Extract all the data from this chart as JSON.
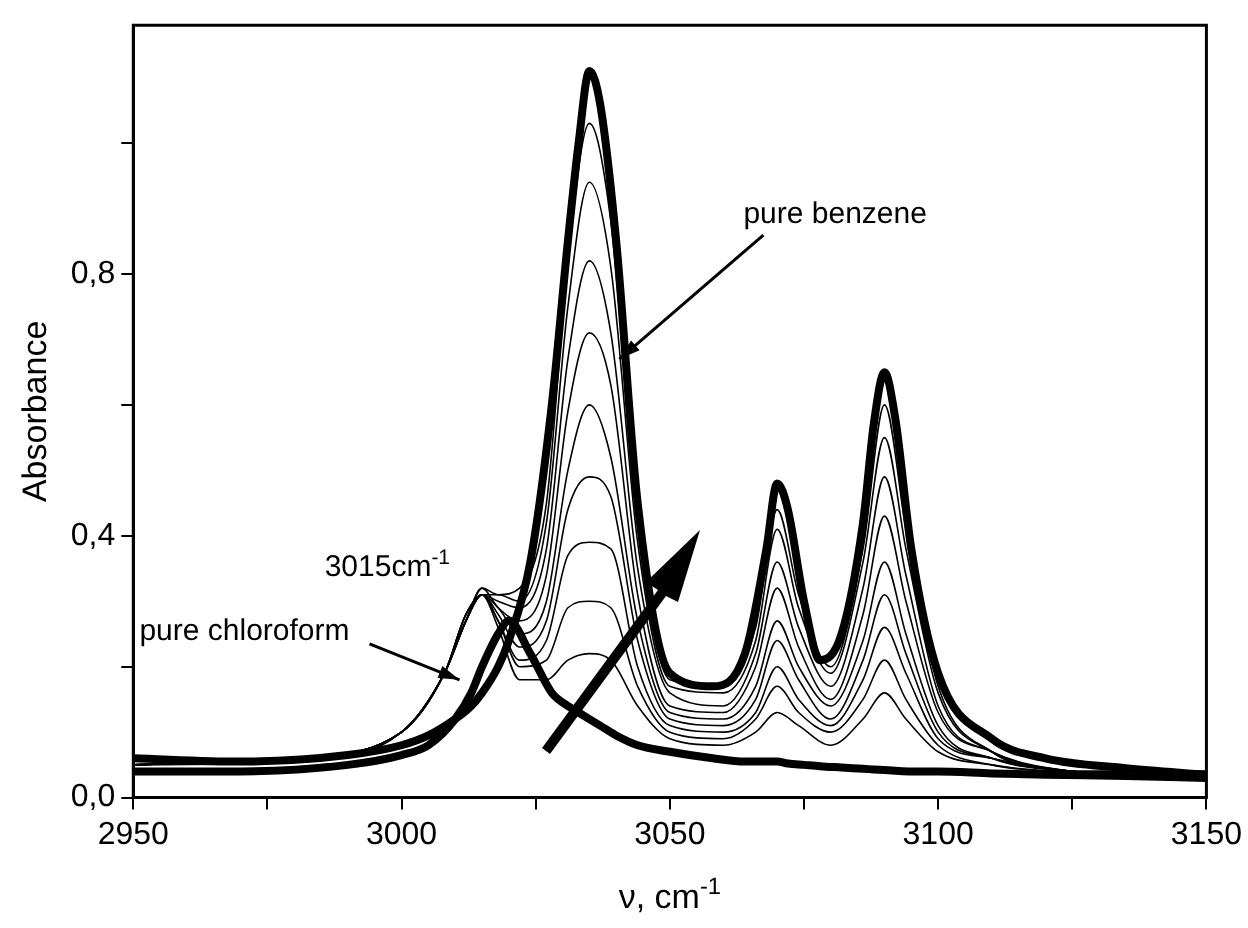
{
  "chart_data": {
    "type": "line",
    "xlabel": "ν, cm$^{-1}$",
    "ylabel": "Absorbance",
    "xlim": [
      2950,
      3150
    ],
    "xticks": [
      2950,
      {
        "value": 2975,
        "label": null
      },
      3000,
      {
        "value": 3025,
        "label": null
      },
      3050,
      {
        "value": 3075,
        "label": null
      },
      3100,
      {
        "value": 3125,
        "label": null
      },
      3150
    ],
    "ylim": [
      0,
      1.18
    ],
    "yticks": [
      {
        "value": 0,
        "label": "0,0"
      },
      {
        "value": 0.2,
        "label": null
      },
      {
        "value": 0.4,
        "label": "0,4"
      },
      {
        "value": 0.6,
        "label": null
      },
      {
        "value": 0.8,
        "label": "0,8"
      },
      {
        "value": 1.0,
        "label": null
      }
    ],
    "grid": false,
    "legend": false,
    "marker": "none",
    "line_style": "solid",
    "annotations": [
      {
        "text": "pure benzene",
        "x": 3040.6,
        "y": 0.67
      },
      {
        "text": "pure chloroform",
        "x": 3010.8,
        "y": 0.18
      },
      {
        "text": "3015cm$^{-1}$",
        "x": 3015,
        "y": 0.32
      }
    ],
    "series": [
      {
        "color": "#000000",
        "x": [
          2950,
          2970,
          2990,
          3000,
          3005,
          3010,
          3013,
          3015,
          3018,
          3020,
          3024,
          3028,
          3031,
          3033,
          3035,
          3037,
          3040,
          3044,
          3050,
          3058,
          3064,
          3068,
          3070,
          3072,
          3075,
          3078,
          3082,
          3086,
          3088,
          3090,
          3092,
          3095,
          3100,
          3110,
          3120,
          3135,
          3150
        ],
        "values": [
          0.06,
          0.055,
          0.065,
          0.08,
          0.095,
          0.12,
          0.14,
          0.16,
          0.2,
          0.24,
          0.36,
          0.6,
          0.85,
          1.0,
          1.11,
          1.06,
          0.85,
          0.45,
          0.19,
          0.17,
          0.22,
          0.38,
          0.48,
          0.44,
          0.3,
          0.21,
          0.25,
          0.42,
          0.57,
          0.65,
          0.58,
          0.38,
          0.19,
          0.09,
          0.06,
          0.045,
          0.035
        ]
      },
      {
        "color": "#000000",
        "x": [
          2950,
          2970,
          2990,
          3000,
          3005,
          3010,
          3013,
          3015,
          3018,
          3020,
          3024,
          3028,
          3031,
          3033,
          3035,
          3037,
          3040,
          3044,
          3050,
          3058,
          3064,
          3068,
          3070,
          3072,
          3075,
          3078,
          3082,
          3086,
          3088,
          3090,
          3092,
          3095,
          3100,
          3110,
          3120,
          3135,
          3150
        ],
        "values": [
          0.04,
          0.04,
          0.05,
          0.065,
          0.08,
          0.12,
          0.16,
          0.2,
          0.25,
          0.27,
          0.22,
          0.16,
          0.14,
          0.13,
          0.12,
          0.11,
          0.095,
          0.08,
          0.07,
          0.06,
          0.055,
          0.055,
          0.055,
          0.052,
          0.05,
          0.048,
          0.046,
          0.044,
          0.043,
          0.042,
          0.041,
          0.04,
          0.04,
          0.037,
          0.035,
          0.033,
          0.03
        ]
      },
      {
        "color": "#000000",
        "x": [
          2950,
          2980,
          3000,
          3008,
          3012,
          3015,
          3018,
          3022,
          3027,
          3031,
          3035,
          3039,
          3044,
          3050,
          3060,
          3066,
          3070,
          3074,
          3080,
          3086,
          3090,
          3094,
          3100,
          3110,
          3125,
          3150
        ],
        "values": [
          0.05,
          0.055,
          0.1,
          0.19,
          0.27,
          0.32,
          0.31,
          0.32,
          0.45,
          0.82,
          1.03,
          0.88,
          0.42,
          0.18,
          0.17,
          0.26,
          0.44,
          0.31,
          0.2,
          0.38,
          0.6,
          0.41,
          0.17,
          0.07,
          0.04,
          0.03
        ]
      },
      {
        "color": "#000000",
        "x": [
          2950,
          2980,
          3000,
          3008,
          3012,
          3015,
          3018,
          3022,
          3027,
          3031,
          3035,
          3039,
          3044,
          3050,
          3060,
          3066,
          3070,
          3074,
          3080,
          3086,
          3090,
          3094,
          3100,
          3110,
          3125,
          3150
        ],
        "values": [
          0.05,
          0.06,
          0.1,
          0.19,
          0.27,
          0.31,
          0.31,
          0.3,
          0.42,
          0.75,
          0.94,
          0.81,
          0.39,
          0.17,
          0.16,
          0.24,
          0.41,
          0.29,
          0.19,
          0.36,
          0.55,
          0.38,
          0.16,
          0.07,
          0.04,
          0.03
        ]
      },
      {
        "color": "#000000",
        "x": [
          2950,
          2980,
          3000,
          3008,
          3012,
          3015,
          3018,
          3022,
          3027,
          3031,
          3035,
          3039,
          3044,
          3050,
          3060,
          3066,
          3070,
          3074,
          3080,
          3086,
          3090,
          3094,
          3100,
          3110,
          3125,
          3150
        ],
        "values": [
          0.05,
          0.06,
          0.1,
          0.19,
          0.27,
          0.31,
          0.3,
          0.29,
          0.38,
          0.67,
          0.82,
          0.71,
          0.35,
          0.16,
          0.14,
          0.22,
          0.36,
          0.26,
          0.17,
          0.32,
          0.49,
          0.34,
          0.14,
          0.07,
          0.04,
          0.03
        ]
      },
      {
        "color": "#000000",
        "x": [
          2950,
          2980,
          3000,
          3008,
          3012,
          3015,
          3018,
          3022,
          3027,
          3031,
          3035,
          3039,
          3044,
          3050,
          3060,
          3066,
          3070,
          3074,
          3080,
          3086,
          3090,
          3094,
          3100,
          3110,
          3125,
          3150
        ],
        "values": [
          0.05,
          0.06,
          0.1,
          0.19,
          0.27,
          0.32,
          0.29,
          0.27,
          0.34,
          0.59,
          0.71,
          0.63,
          0.31,
          0.14,
          0.13,
          0.2,
          0.32,
          0.23,
          0.15,
          0.28,
          0.43,
          0.3,
          0.13,
          0.07,
          0.04,
          0.03
        ]
      },
      {
        "color": "#000000",
        "x": [
          2950,
          2980,
          3000,
          3008,
          3012,
          3015,
          3018,
          3022,
          3027,
          3031,
          3035,
          3039,
          3044,
          3050,
          3060,
          3066,
          3070,
          3074,
          3080,
          3086,
          3090,
          3094,
          3100,
          3110,
          3125,
          3150
        ],
        "values": [
          0.05,
          0.06,
          0.1,
          0.19,
          0.27,
          0.31,
          0.29,
          0.25,
          0.3,
          0.5,
          0.6,
          0.52,
          0.27,
          0.13,
          0.12,
          0.17,
          0.27,
          0.2,
          0.14,
          0.24,
          0.36,
          0.25,
          0.11,
          0.06,
          0.04,
          0.03
        ]
      },
      {
        "color": "#000000",
        "x": [
          2950,
          2980,
          3000,
          3008,
          3012,
          3015,
          3018,
          3022,
          3027,
          3031,
          3035,
          3039,
          3044,
          3050,
          3060,
          3066,
          3070,
          3074,
          3080,
          3086,
          3090,
          3094,
          3100,
          3110,
          3125,
          3150
        ],
        "values": [
          0.05,
          0.06,
          0.1,
          0.19,
          0.27,
          0.31,
          0.28,
          0.23,
          0.27,
          0.44,
          0.49,
          0.46,
          0.24,
          0.12,
          0.11,
          0.15,
          0.24,
          0.18,
          0.12,
          0.21,
          0.31,
          0.22,
          0.1,
          0.06,
          0.04,
          0.03
        ]
      },
      {
        "color": "#000000",
        "x": [
          2950,
          2980,
          3000,
          3008,
          3012,
          3015,
          3018,
          3022,
          3027,
          3031,
          3035,
          3039,
          3044,
          3050,
          3060,
          3066,
          3070,
          3074,
          3080,
          3086,
          3090,
          3094,
          3100,
          3110,
          3125,
          3150
        ],
        "values": [
          0.05,
          0.06,
          0.1,
          0.19,
          0.28,
          0.31,
          0.27,
          0.21,
          0.24,
          0.37,
          0.39,
          0.38,
          0.2,
          0.11,
          0.1,
          0.13,
          0.2,
          0.15,
          0.11,
          0.18,
          0.26,
          0.19,
          0.09,
          0.06,
          0.04,
          0.03
        ]
      },
      {
        "color": "#000000",
        "x": [
          2950,
          2980,
          3000,
          3008,
          3012,
          3015,
          3018,
          3022,
          3027,
          3031,
          3035,
          3039,
          3044,
          3050,
          3060,
          3066,
          3070,
          3074,
          3080,
          3086,
          3090,
          3094,
          3100,
          3110,
          3125,
          3150
        ],
        "values": [
          0.05,
          0.06,
          0.1,
          0.19,
          0.28,
          0.31,
          0.27,
          0.2,
          0.21,
          0.29,
          0.3,
          0.29,
          0.17,
          0.1,
          0.09,
          0.12,
          0.17,
          0.13,
          0.1,
          0.15,
          0.21,
          0.15,
          0.08,
          0.05,
          0.04,
          0.04
        ]
      },
      {
        "color": "#000000",
        "x": [
          2950,
          2980,
          3000,
          3008,
          3012,
          3015,
          3018,
          3022,
          3027,
          3031,
          3035,
          3039,
          3044,
          3050,
          3060,
          3066,
          3070,
          3074,
          3080,
          3086,
          3090,
          3094,
          3100,
          3110,
          3125,
          3150
        ],
        "values": [
          0.05,
          0.06,
          0.1,
          0.19,
          0.28,
          0.31,
          0.26,
          0.18,
          0.18,
          0.21,
          0.22,
          0.21,
          0.14,
          0.09,
          0.08,
          0.1,
          0.13,
          0.11,
          0.08,
          0.12,
          0.16,
          0.12,
          0.07,
          0.05,
          0.04,
          0.04
        ]
      }
    ]
  }
}
